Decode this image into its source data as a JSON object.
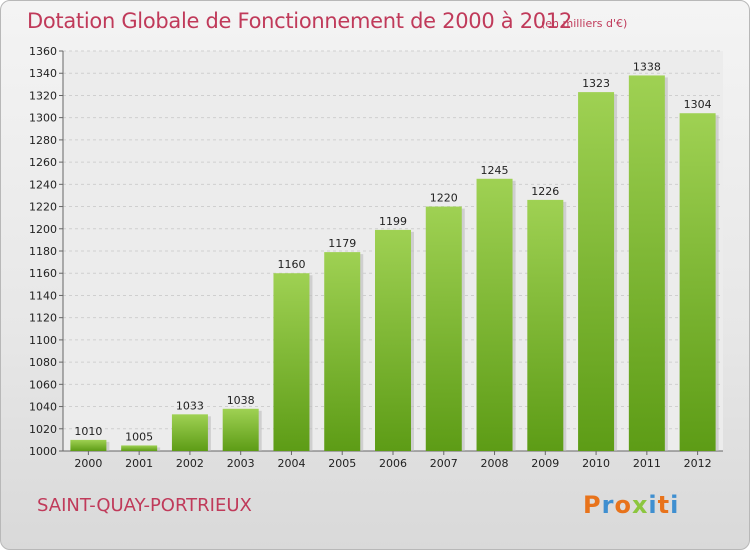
{
  "header": {
    "title": "Dotation Globale de Fonctionnement de 2000 à 2012",
    "unit": "(en milliers d'€)"
  },
  "footer": {
    "city": "SAINT-QUAY-PORTRIEUX",
    "logo": "Proxiti"
  },
  "colors": {
    "title": "#c03a5a",
    "bar_top": "#9fd153",
    "bar_bottom": "#5d9c16",
    "logo_letters": [
      "#e8731b",
      "#3f8fd0",
      "#e8731b",
      "#8cc63f",
      "#3f8fd0",
      "#e8731b",
      "#3f8fd0"
    ]
  },
  "chart_data": {
    "type": "bar",
    "categories": [
      "2000",
      "2001",
      "2002",
      "2003",
      "2004",
      "2005",
      "2006",
      "2007",
      "2008",
      "2009",
      "2010",
      "2011",
      "2012"
    ],
    "values": [
      1010,
      1005,
      1033,
      1038,
      1160,
      1179,
      1199,
      1220,
      1245,
      1226,
      1323,
      1338,
      1304
    ],
    "data_labels": [
      "1010",
      "1005",
      "1033",
      "1038",
      "1160",
      "1179",
      "1199",
      "1220",
      "1245",
      "1226",
      "1323",
      "1338",
      "1304"
    ],
    "yticks": [
      "1000",
      "1020",
      "1040",
      "1060",
      "1080",
      "1100",
      "1120",
      "1140",
      "1160",
      "1180",
      "1200",
      "1220",
      "1240",
      "1260",
      "1280",
      "1300",
      "1320",
      "1340",
      "1360"
    ],
    "ylim": [
      1000,
      1360
    ],
    "grid": true
  }
}
